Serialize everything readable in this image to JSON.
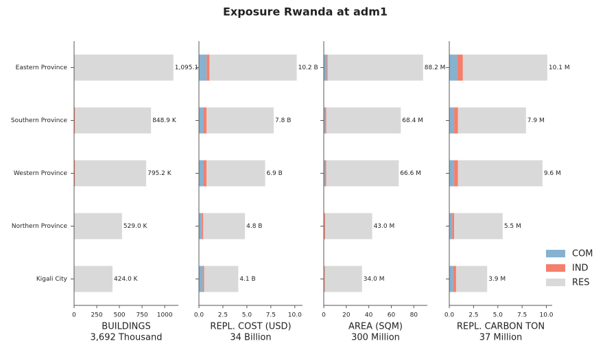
{
  "title": "Exposure Rwanda at adm1",
  "legend_position": "right",
  "chart_data": [
    {
      "type": "barh_stacked",
      "xlabel": "BUILDINGS",
      "xlabel_note": "3,692 Thousand",
      "categories": [
        "Eastern Province",
        "Southern Province",
        "Western Province",
        "Northern Province",
        "Kigali City"
      ],
      "series": [
        {
          "name": "COM",
          "color": "#86b2d0",
          "values": [
            3,
            2,
            2,
            1,
            1
          ]
        },
        {
          "name": "IND",
          "color": "#f47f6b",
          "values": [
            2,
            8,
            8,
            2,
            1
          ]
        },
        {
          "name": "RES",
          "color": "#d9d9d9",
          "values": [
            1090.1,
            838.9,
            785.2,
            526.0,
            422.0
          ]
        }
      ],
      "totals": {
        "values": [
          1095.1,
          848.9,
          795.2,
          529.0,
          424.0
        ],
        "value_labels": [
          "1,095.1 K",
          "848.9 K",
          "795.2 K",
          "529.0 K",
          "424.0 K"
        ]
      },
      "xlim": [
        0,
        1150
      ],
      "xticks": [
        0,
        250,
        500,
        750,
        1000
      ]
    },
    {
      "type": "barh_stacked",
      "xlabel": "REPL. COST (USD)",
      "xlabel_note": "34 Billion",
      "series": [
        {
          "name": "COM",
          "color": "#86b2d0",
          "values": [
            0.8,
            0.5,
            0.5,
            0.3,
            0.4
          ]
        },
        {
          "name": "IND",
          "color": "#f47f6b",
          "values": [
            0.3,
            0.3,
            0.3,
            0.15,
            0.15
          ]
        },
        {
          "name": "RES",
          "color": "#d9d9d9",
          "values": [
            9.1,
            7.0,
            6.1,
            4.35,
            3.55
          ]
        }
      ],
      "totals": {
        "values": [
          10.2,
          7.8,
          6.9,
          4.8,
          4.1
        ],
        "value_labels": [
          "10.2 B",
          "7.8 B",
          "6.9 B",
          "4.8 B",
          "4.1 B"
        ]
      },
      "xlim": [
        0,
        10.8
      ],
      "xticks": [
        {
          "value": 0,
          "label": "0.0"
        },
        2.5,
        {
          "value": 5,
          "label": "5.0"
        },
        7.5,
        {
          "value": 10,
          "label": "10.0"
        }
      ]
    },
    {
      "type": "barh_stacked",
      "xlabel": "AREA (SQM)",
      "xlabel_note": "300 Million",
      "series": [
        {
          "name": "COM",
          "color": "#86b2d0",
          "values": [
            2.5,
            1,
            1,
            0.5,
            0.5
          ]
        },
        {
          "name": "IND",
          "color": "#f47f6b",
          "values": [
            1,
            1.2,
            1.2,
            0.8,
            0.5
          ]
        },
        {
          "name": "RES",
          "color": "#d9d9d9",
          "values": [
            84.7,
            66.2,
            64.4,
            41.7,
            33.0
          ]
        }
      ],
      "totals": {
        "values": [
          88.2,
          68.4,
          66.6,
          43.0,
          34.0
        ],
        "value_labels": [
          "88.2 M",
          "68.4 M",
          "66.6 M",
          "43.0 M",
          "34.0 M"
        ]
      },
      "xlim": [
        0,
        92
      ],
      "xticks": [
        0,
        20,
        40,
        60,
        80
      ]
    },
    {
      "type": "barh_stacked",
      "xlabel": "REPL. CARBON TON",
      "xlabel_note": "37 Million",
      "series": [
        {
          "name": "COM",
          "color": "#86b2d0",
          "values": [
            0.8,
            0.5,
            0.5,
            0.3,
            0.4
          ]
        },
        {
          "name": "IND",
          "color": "#f47f6b",
          "values": [
            0.6,
            0.4,
            0.4,
            0.2,
            0.3
          ]
        },
        {
          "name": "RES",
          "color": "#d9d9d9",
          "values": [
            8.7,
            7.0,
            8.7,
            5.0,
            3.2
          ]
        }
      ],
      "totals": {
        "values": [
          10.1,
          7.9,
          9.6,
          5.5,
          3.9
        ],
        "value_labels": [
          "10.1 M",
          "7.9 M",
          "9.6 M",
          "5.5 M",
          "3.9 M"
        ]
      },
      "xlim": [
        0,
        10.6
      ],
      "xticks": [
        {
          "value": 0,
          "label": "0.0"
        },
        2.5,
        {
          "value": 5,
          "label": "5.0"
        },
        7.5,
        {
          "value": 10,
          "label": "10.0"
        }
      ]
    }
  ]
}
